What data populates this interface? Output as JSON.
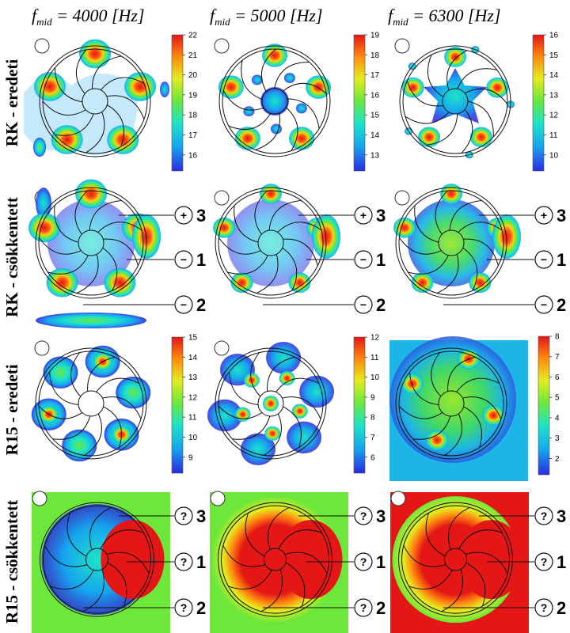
{
  "columns": [
    {
      "prefix": "f",
      "sub": "mid",
      "suffix": " = 4000 [Hz]"
    },
    {
      "prefix": "f",
      "sub": "mid",
      "suffix": " = 5000 [Hz]"
    },
    {
      "prefix": "f",
      "sub": "mid",
      "suffix": " = 6300 [Hz]"
    }
  ],
  "rows": [
    "RK - eredeti",
    "RK - csökkentett",
    "R15 - eredeti",
    "R15 - csökkentett"
  ],
  "marker_labels": [
    "3",
    "1",
    "2"
  ],
  "marker_signs_rk": [
    "+",
    "−",
    "−"
  ],
  "marker_signs_r15": [
    "?",
    "?",
    "?"
  ],
  "chart_data": [
    {
      "type": "heatmap",
      "row": "RK - eredeti",
      "column": "4000 Hz",
      "colorbar_ticks": [
        "22",
        "21",
        "20",
        "19",
        "18",
        "17",
        "16"
      ],
      "colorbar_range": [
        15.2,
        22
      ],
      "legend": "right"
    },
    {
      "type": "heatmap",
      "row": "RK - eredeti",
      "column": "5000 Hz",
      "colorbar_ticks": [
        "19",
        "18",
        "17",
        "16",
        "15",
        "14",
        "13"
      ],
      "colorbar_range": [
        12.2,
        19
      ],
      "legend": "right"
    },
    {
      "type": "heatmap",
      "row": "RK - eredeti",
      "column": "6300 Hz",
      "colorbar_ticks": [
        "16",
        "15",
        "14",
        "13",
        "12",
        "11",
        "10"
      ],
      "colorbar_range": [
        9.2,
        16
      ],
      "legend": "right"
    },
    {
      "type": "heatmap",
      "row": "R15 - eredeti",
      "column": "4000 Hz",
      "colorbar_ticks": [
        "15",
        "14",
        "13",
        "12",
        "11",
        "10",
        "9"
      ],
      "colorbar_range": [
        8.2,
        15
      ],
      "legend": "right"
    },
    {
      "type": "heatmap",
      "row": "R15 - eredeti",
      "column": "5000 Hz",
      "colorbar_ticks": [
        "12",
        "11",
        "10",
        "9",
        "8",
        "7",
        "6"
      ],
      "colorbar_range": [
        5.2,
        12
      ],
      "legend": "right"
    },
    {
      "type": "heatmap",
      "row": "R15 - eredeti",
      "column": "6300 Hz",
      "colorbar_ticks": [
        "8",
        "7",
        "6",
        "5",
        "4",
        "3",
        "2"
      ],
      "colorbar_range": [
        1.2,
        8
      ],
      "legend": "right"
    }
  ],
  "colors": {
    "scale": [
      "#2a2ae0",
      "#16a5ee",
      "#1de3c8",
      "#6de83a",
      "#e4ec1f",
      "#ff8a0f",
      "#e51616"
    ],
    "line": "#111111"
  }
}
